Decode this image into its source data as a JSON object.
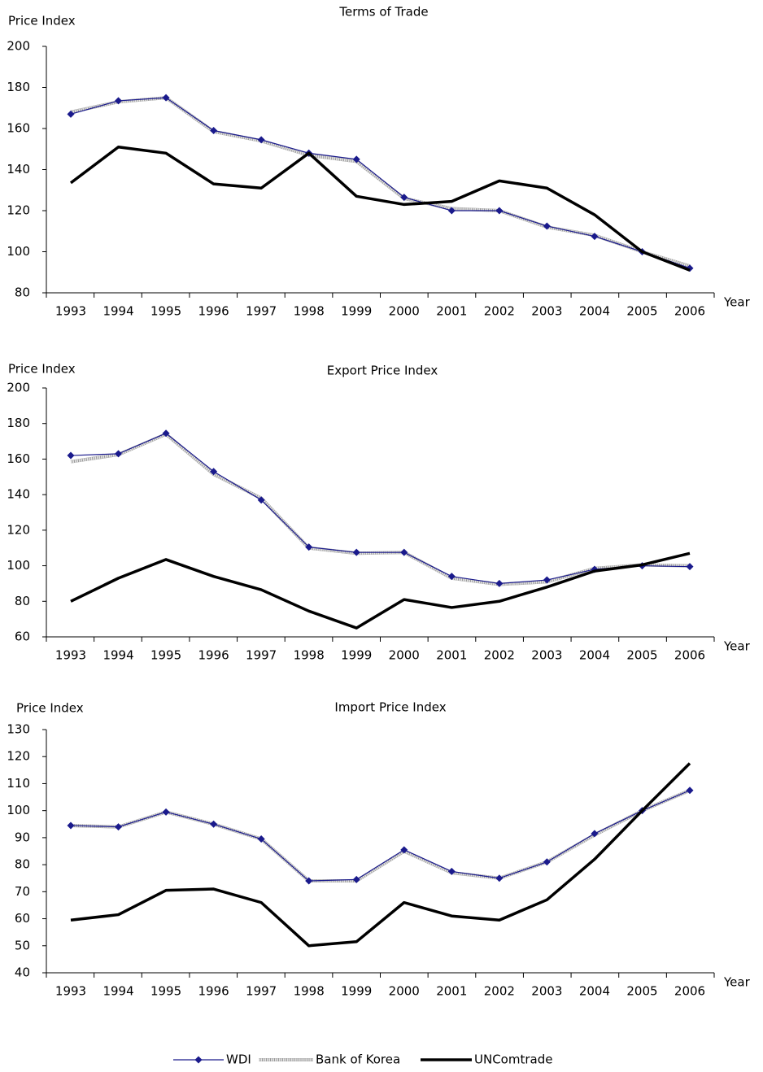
{
  "chart_data": [
    {
      "type": "line",
      "title": "Terms of Trade",
      "y_label": "Price Index",
      "x_label": "Year",
      "categories": [
        "1993",
        "1994",
        "1995",
        "1996",
        "1997",
        "1998",
        "1999",
        "2000",
        "2001",
        "2002",
        "2003",
        "2004",
        "2005",
        "2006"
      ],
      "ylim": [
        80,
        200
      ],
      "yticks": [
        80,
        100,
        120,
        140,
        160,
        180,
        200
      ],
      "series": [
        {
          "name": "WDI",
          "color": "#1a1a8c",
          "values": [
            167,
            173.5,
            175,
            159,
            154.5,
            148,
            145,
            126.5,
            120,
            120,
            112.5,
            107.5,
            100,
            92
          ]
        },
        {
          "name": "Bank of Korea",
          "color": "#999999",
          "values": [
            168,
            173,
            175,
            158.5,
            154,
            147,
            144,
            126,
            121,
            120,
            112,
            108,
            100,
            93
          ]
        },
        {
          "name": "UNComtrade",
          "color": "#000000",
          "values": [
            133.5,
            151,
            148,
            133,
            131,
            148,
            127,
            123,
            124.5,
            134.5,
            131,
            118,
            100,
            91
          ]
        }
      ]
    },
    {
      "type": "line",
      "title": "Export Price Index",
      "y_label": "Price Index",
      "x_label": "Year",
      "categories": [
        "1993",
        "1994",
        "1995",
        "1996",
        "1997",
        "1998",
        "1999",
        "2000",
        "2001",
        "2002",
        "2003",
        "2004",
        "2005",
        "2006"
      ],
      "ylim": [
        60,
        200
      ],
      "yticks": [
        60,
        80,
        100,
        120,
        140,
        160,
        180,
        200
      ],
      "series": [
        {
          "color": "#1a1a8c",
          "values": [
            162,
            163,
            174.5,
            153,
            137,
            110.5,
            107.5,
            107.5,
            94,
            90,
            92,
            98,
            100,
            99.5
          ]
        },
        {
          "color": "#999999",
          "values": [
            158.5,
            162.5,
            174,
            151.5,
            138,
            110,
            107,
            107.5,
            93,
            89.5,
            91,
            98.5,
            100.5,
            100
          ]
        },
        {
          "color": "#000000",
          "values": [
            80,
            93,
            103.5,
            94,
            86.5,
            74.5,
            65,
            81,
            76.5,
            80,
            88,
            97,
            100.5,
            107
          ]
        }
      ]
    },
    {
      "type": "line",
      "title": "Import Price Index",
      "y_label": "Price Index",
      "x_label": "Year",
      "categories": [
        "1993",
        "1994",
        "1995",
        "1996",
        "1997",
        "1998",
        "1999",
        "2000",
        "2001",
        "2002",
        "2003",
        "2004",
        "2005",
        "2006"
      ],
      "ylim": [
        40,
        130
      ],
      "yticks": [
        40,
        50,
        60,
        70,
        80,
        90,
        100,
        110,
        120,
        130
      ],
      "series": [
        {
          "color": "#1a1a8c",
          "values": [
            94.5,
            94,
            99.5,
            95,
            89.5,
            74,
            74.5,
            85.5,
            77.5,
            75,
            81,
            91.5,
            100,
            107.5
          ]
        },
        {
          "color": "#999999",
          "values": [
            94.5,
            94,
            99.5,
            95,
            89.5,
            74,
            74,
            85,
            77,
            75,
            81,
            91,
            100,
            107.5
          ]
        },
        {
          "color": "#000000",
          "values": [
            59.5,
            61.5,
            70.5,
            71,
            66,
            50,
            51.5,
            66,
            61,
            59.5,
            67,
            82,
            100,
            117.5
          ]
        }
      ]
    }
  ]
}
